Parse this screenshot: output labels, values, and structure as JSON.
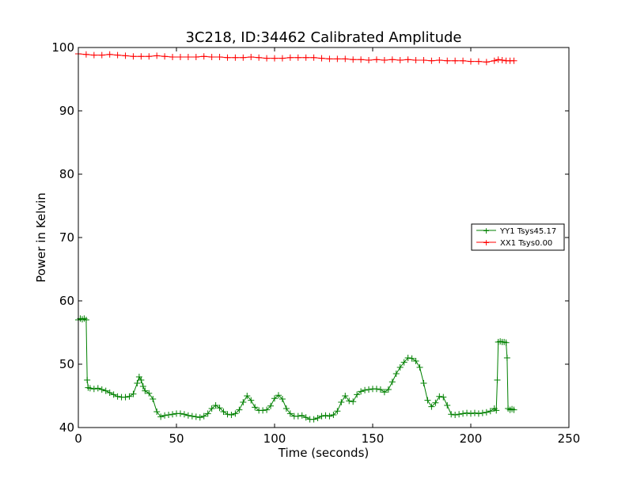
{
  "chart_data": {
    "type": "line",
    "title": "3C218, ID:34462 Calibrated Amplitude",
    "xlabel": "Time (seconds)",
    "ylabel": "Power in Kelvin",
    "xlim": [
      0,
      250
    ],
    "ylim": [
      40,
      100
    ],
    "xticks": [
      0,
      50,
      100,
      150,
      200,
      250
    ],
    "yticks": [
      40,
      50,
      60,
      70,
      80,
      90,
      100
    ],
    "grid": false,
    "legend_position": "center-right",
    "marker": "+",
    "series": [
      {
        "name": "YY1 Tsys45.17",
        "color": "#008000",
        "x": [
          0,
          1,
          2,
          3,
          4,
          4.5,
          5,
          6,
          8,
          10,
          12,
          14,
          16,
          18,
          20,
          22,
          24,
          26,
          28,
          30,
          31,
          32,
          33,
          34,
          36,
          38,
          40,
          42,
          44,
          46,
          48,
          50,
          52,
          54,
          56,
          58,
          60,
          62,
          64,
          66,
          68,
          70,
          72,
          74,
          76,
          78,
          80,
          82,
          84,
          86,
          88,
          90,
          92,
          94,
          96,
          98,
          100,
          102,
          104,
          106,
          108,
          110,
          112,
          114,
          116,
          118,
          120,
          122,
          124,
          126,
          128,
          130,
          132,
          134,
          136,
          138,
          140,
          142,
          144,
          146,
          148,
          150,
          152,
          154,
          156,
          158,
          160,
          162,
          164,
          166,
          168,
          170,
          172,
          174,
          176,
          178,
          180,
          182,
          184,
          186,
          188,
          190,
          192,
          194,
          196,
          198,
          200,
          202,
          204,
          206,
          208,
          210,
          212,
          213,
          213.5,
          214,
          215,
          216,
          217,
          218,
          218.5,
          219,
          220,
          221,
          222
        ],
        "values": [
          57,
          57.2,
          57.1,
          57.2,
          57,
          47.5,
          46.3,
          46.2,
          46.1,
          46.2,
          46.0,
          45.8,
          45.5,
          45.2,
          44.9,
          44.8,
          44.8,
          44.9,
          45.3,
          47,
          48,
          47.5,
          46.5,
          45.8,
          45.4,
          44.5,
          42.5,
          41.7,
          41.9,
          42.0,
          42.1,
          42.2,
          42.2,
          42.1,
          41.9,
          41.8,
          41.7,
          41.6,
          41.8,
          42.2,
          43.0,
          43.5,
          43.1,
          42.5,
          42.1,
          42.0,
          42.2,
          42.8,
          44.0,
          45.0,
          44.3,
          43.2,
          42.7,
          42.7,
          42.8,
          43.4,
          44.6,
          45.1,
          44.5,
          43.0,
          42.2,
          41.8,
          41.8,
          41.9,
          41.6,
          41.3,
          41.3,
          41.5,
          41.8,
          41.9,
          41.8,
          42.0,
          42.6,
          44.0,
          45.0,
          44.2,
          44.1,
          45.2,
          45.7,
          45.9,
          46.0,
          46.1,
          46.1,
          46.0,
          45.6,
          46.0,
          47.2,
          48.5,
          49.5,
          50.3,
          51.0,
          50.9,
          50.5,
          49.5,
          47.0,
          44.3,
          43.3,
          43.9,
          44.9,
          44.8,
          43.5,
          42.1,
          42.0,
          42.1,
          42.2,
          42.3,
          42.2,
          42.3,
          42.2,
          42.3,
          42.4,
          42.6,
          43.0,
          42.7,
          47.5,
          53.5,
          53.6,
          53.5,
          53.5,
          53.4,
          51.0,
          43.0,
          42.8,
          42.9,
          42.8
        ]
      },
      {
        "name": "XX1 Tsys0.00",
        "color": "#ff0000",
        "x": [
          0,
          4,
          8,
          12,
          16,
          20,
          24,
          28,
          32,
          36,
          40,
          44,
          48,
          52,
          56,
          60,
          64,
          68,
          72,
          76,
          80,
          84,
          88,
          92,
          96,
          100,
          104,
          108,
          112,
          116,
          120,
          124,
          128,
          132,
          136,
          140,
          144,
          148,
          152,
          156,
          160,
          164,
          168,
          172,
          176,
          180,
          184,
          188,
          192,
          196,
          200,
          204,
          208,
          212,
          214,
          216,
          218,
          220,
          222
        ],
        "values": [
          99.0,
          98.9,
          98.8,
          98.8,
          98.9,
          98.8,
          98.7,
          98.6,
          98.6,
          98.6,
          98.7,
          98.6,
          98.5,
          98.5,
          98.5,
          98.5,
          98.6,
          98.5,
          98.5,
          98.4,
          98.4,
          98.4,
          98.5,
          98.4,
          98.3,
          98.3,
          98.3,
          98.4,
          98.4,
          98.4,
          98.4,
          98.3,
          98.2,
          98.2,
          98.2,
          98.1,
          98.1,
          98.0,
          98.1,
          98.0,
          98.1,
          98.0,
          98.1,
          98.0,
          98.0,
          97.9,
          98.0,
          97.9,
          97.9,
          97.9,
          97.8,
          97.8,
          97.7,
          97.9,
          98.1,
          98.0,
          97.9,
          97.9,
          97.9
        ]
      }
    ]
  }
}
